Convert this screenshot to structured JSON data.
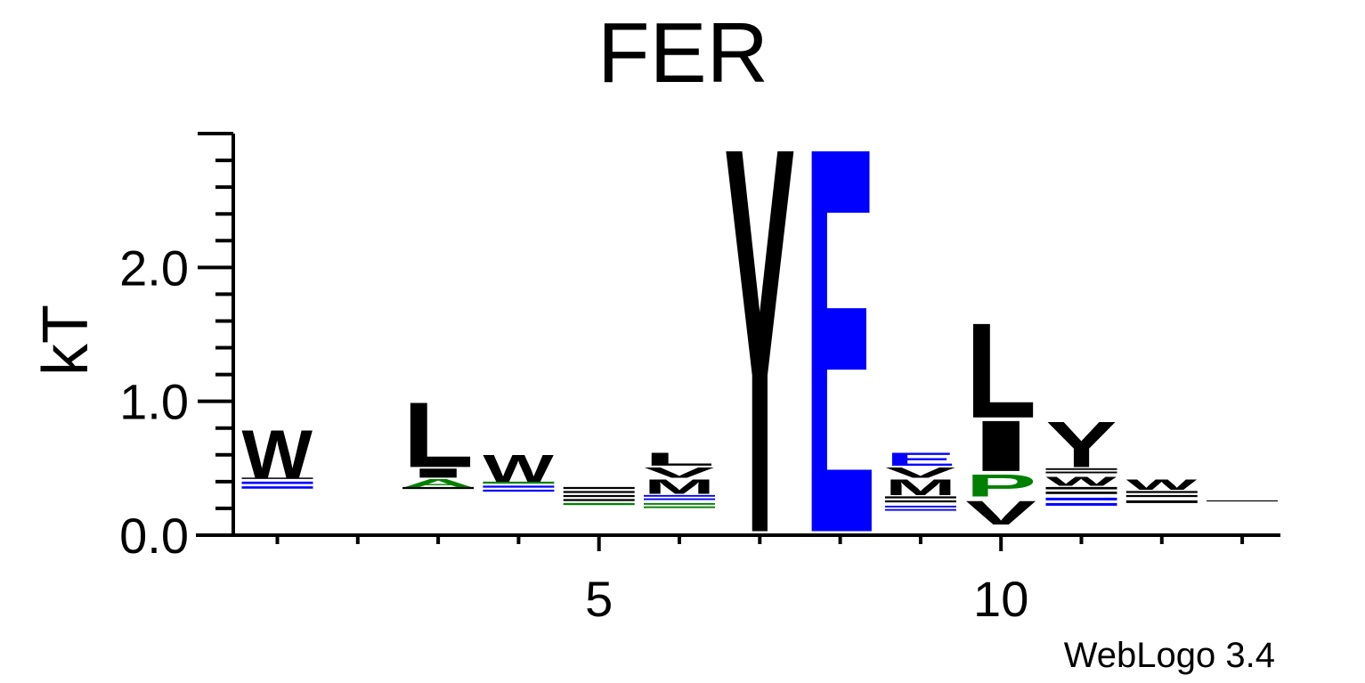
{
  "chart_data": {
    "type": "sequence-logo",
    "title": "FER",
    "ylabel": "kT",
    "ylim": [
      0,
      3.0
    ],
    "y_ticks": [
      "0.0",
      "1.0",
      "2.0"
    ],
    "y_tick_values": [
      0,
      1,
      2
    ],
    "x_ticks": [
      "5",
      "10"
    ],
    "x_tick_values": [
      5,
      10
    ],
    "positions": [
      1,
      2,
      3,
      4,
      5,
      6,
      7,
      8,
      9,
      10,
      11,
      12,
      13
    ],
    "columns": [
      {
        "position": 1,
        "letters": [
          {
            "letter": "W",
            "bottom": 0.43,
            "top": 0.8,
            "color": "#000000"
          },
          {
            "letter": "—",
            "bottom": 0.41,
            "top": 0.43,
            "color": "#000000"
          },
          {
            "letter": "—",
            "bottom": 0.33,
            "top": 0.4,
            "color": "#0000ff"
          }
        ]
      },
      {
        "position": 2,
        "letters": []
      },
      {
        "position": 3,
        "letters": [
          {
            "letter": "L",
            "bottom": 0.51,
            "top": 1.01,
            "color": "#000000"
          },
          {
            "letter": "I",
            "bottom": 0.43,
            "top": 0.5,
            "color": "#000000"
          },
          {
            "letter": "A",
            "bottom": 0.36,
            "top": 0.42,
            "color": "#008000"
          },
          {
            "letter": "—",
            "bottom": 0.33,
            "top": 0.36,
            "color": "#000000"
          }
        ]
      },
      {
        "position": 4,
        "letters": [
          {
            "letter": "W",
            "bottom": 0.4,
            "top": 0.61,
            "color": "#000000"
          },
          {
            "letter": "—",
            "bottom": 0.37,
            "top": 0.4,
            "color": "#008000"
          },
          {
            "letter": "—",
            "bottom": 0.31,
            "top": 0.37,
            "color": "#0000ff"
          }
        ]
      },
      {
        "position": 5,
        "letters": [
          {
            "letter": "—",
            "bottom": 0.3,
            "top": 0.36,
            "color": "#000000"
          },
          {
            "letter": "—",
            "bottom": 0.24,
            "top": 0.3,
            "color": "#000000"
          },
          {
            "letter": "—",
            "bottom": 0.21,
            "top": 0.24,
            "color": "#008000"
          }
        ]
      },
      {
        "position": 6,
        "letters": [
          {
            "letter": "L",
            "bottom": 0.52,
            "top": 0.62,
            "color": "#000000"
          },
          {
            "letter": "V",
            "bottom": 0.43,
            "top": 0.51,
            "color": "#000000"
          },
          {
            "letter": "M",
            "bottom": 0.31,
            "top": 0.42,
            "color": "#000000"
          },
          {
            "letter": "—",
            "bottom": 0.25,
            "top": 0.3,
            "color": "#0000ff"
          },
          {
            "letter": "—",
            "bottom": 0.19,
            "top": 0.24,
            "color": "#008000"
          }
        ]
      },
      {
        "position": 7,
        "letters": [
          {
            "letter": "Y",
            "bottom": 0.03,
            "top": 3.0,
            "color": "#000000"
          }
        ]
      },
      {
        "position": 8,
        "letters": [
          {
            "letter": "E",
            "bottom": 0.03,
            "top": 3.0,
            "color": "#0000ff"
          }
        ]
      },
      {
        "position": 9,
        "letters": [
          {
            "letter": "E",
            "bottom": 0.52,
            "top": 0.62,
            "color": "#0000ff"
          },
          {
            "letter": "V",
            "bottom": 0.43,
            "top": 0.51,
            "color": "#000000"
          },
          {
            "letter": "M",
            "bottom": 0.3,
            "top": 0.42,
            "color": "#000000"
          },
          {
            "letter": "—",
            "bottom": 0.23,
            "top": 0.29,
            "color": "#000000"
          },
          {
            "letter": "—",
            "bottom": 0.17,
            "top": 0.22,
            "color": "#0000ff"
          }
        ]
      },
      {
        "position": 10,
        "letters": [
          {
            "letter": "L",
            "bottom": 0.88,
            "top": 1.61,
            "color": "#000000"
          },
          {
            "letter": "I",
            "bottom": 0.48,
            "top": 0.87,
            "color": "#000000"
          },
          {
            "letter": "P",
            "bottom": 0.29,
            "top": 0.46,
            "color": "#008000"
          },
          {
            "letter": "V",
            "bottom": 0.08,
            "top": 0.26,
            "color": "#000000"
          }
        ]
      },
      {
        "position": 11,
        "letters": [
          {
            "letter": "Y",
            "bottom": 0.51,
            "top": 0.86,
            "color": "#000000"
          },
          {
            "letter": "—",
            "bottom": 0.45,
            "top": 0.5,
            "color": "#000000"
          },
          {
            "letter": "W",
            "bottom": 0.37,
            "top": 0.44,
            "color": "#000000"
          },
          {
            "letter": "—",
            "bottom": 0.29,
            "top": 0.36,
            "color": "#000000"
          },
          {
            "letter": "—",
            "bottom": 0.2,
            "top": 0.28,
            "color": "#0000ff"
          }
        ]
      },
      {
        "position": 12,
        "letters": [
          {
            "letter": "W",
            "bottom": 0.34,
            "top": 0.42,
            "color": "#000000"
          },
          {
            "letter": "—",
            "bottom": 0.27,
            "top": 0.33,
            "color": "#000000"
          },
          {
            "letter": "—",
            "bottom": 0.22,
            "top": 0.26,
            "color": "#000000"
          }
        ]
      },
      {
        "position": 13,
        "letters": [
          {
            "letter": "—",
            "bottom": 0.25,
            "top": 0.26,
            "color": "#000000"
          }
        ]
      }
    ]
  },
  "credit": "WebLogo 3.4"
}
